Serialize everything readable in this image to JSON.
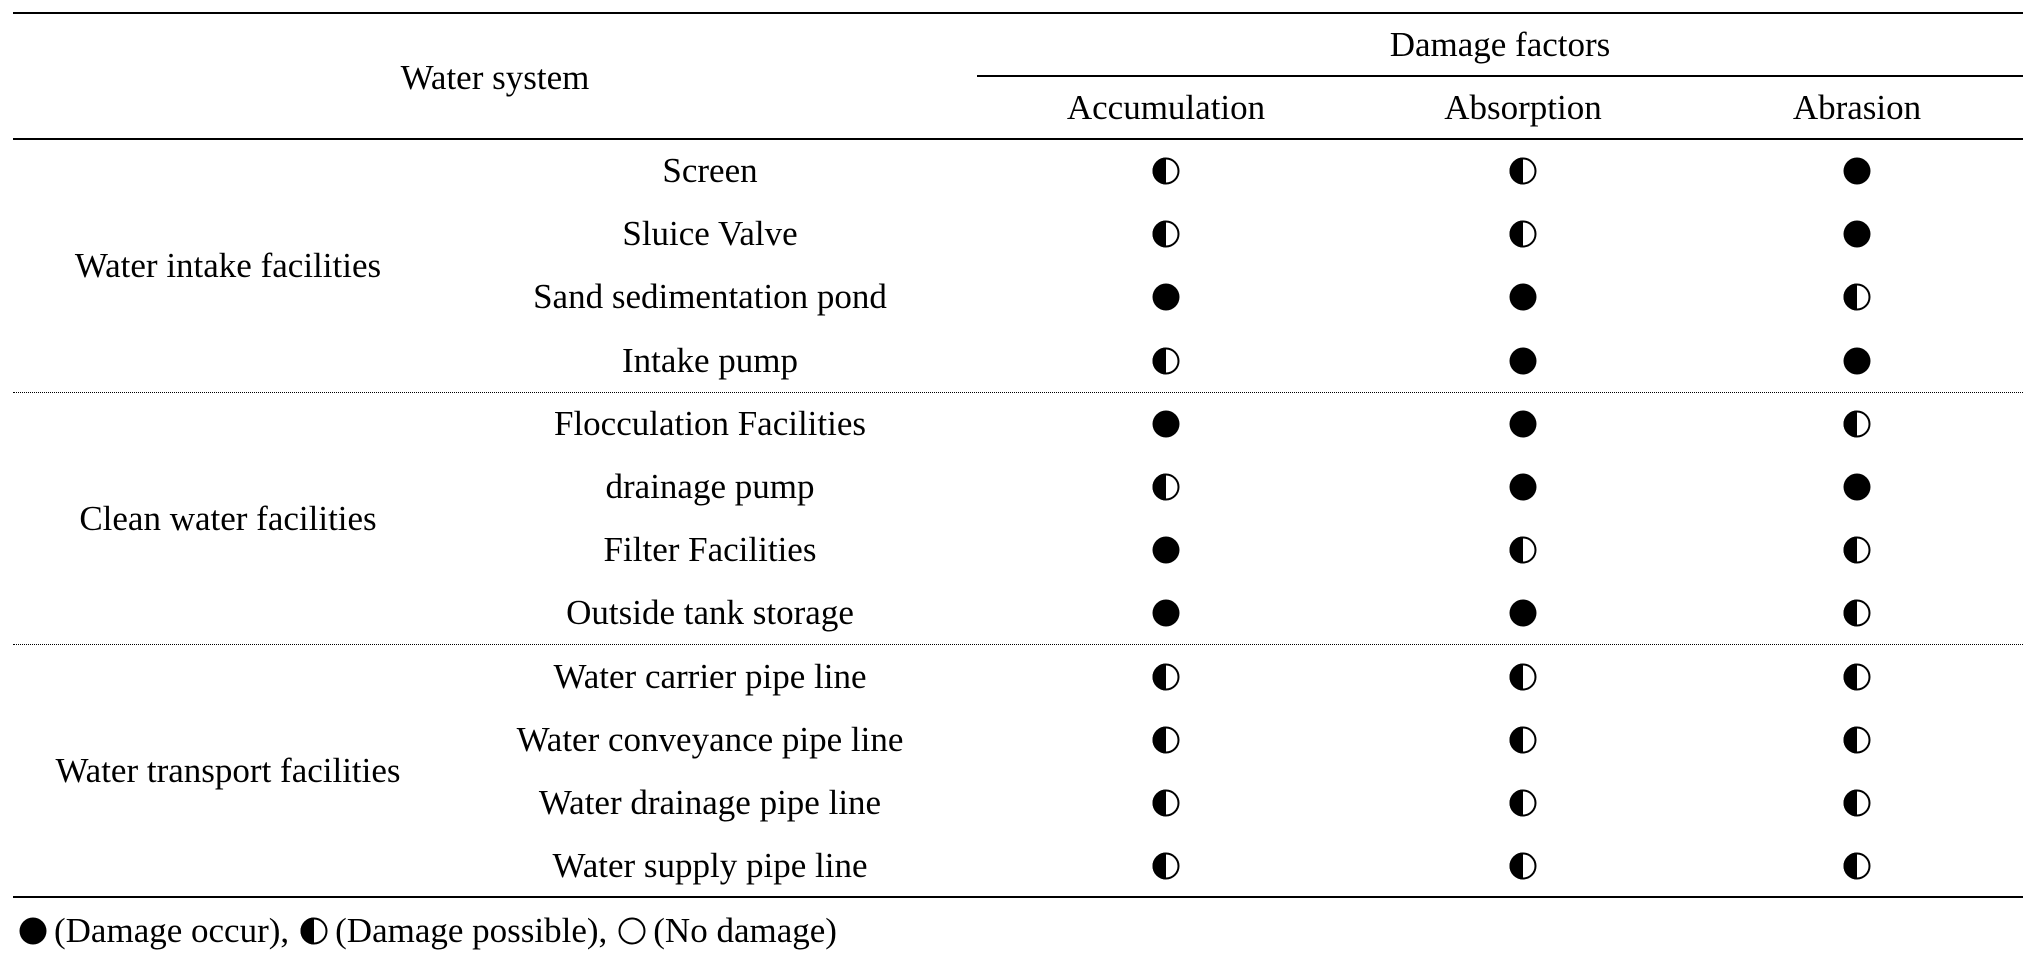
{
  "header": {
    "water_system": "Water system",
    "damage_factors": "Damage factors",
    "columns": [
      "Accumulation",
      "Absorption",
      "Abrasion"
    ]
  },
  "groups": [
    {
      "name": "Water intake facilities",
      "rows": [
        {
          "facility": "Screen",
          "values": [
            "possible",
            "possible",
            "occur"
          ]
        },
        {
          "facility": "Sluice Valve",
          "values": [
            "possible",
            "possible",
            "occur"
          ]
        },
        {
          "facility": "Sand sedimentation pond",
          "values": [
            "occur",
            "occur",
            "possible"
          ]
        },
        {
          "facility": "Intake pump",
          "values": [
            "possible",
            "occur",
            "occur"
          ]
        }
      ]
    },
    {
      "name": "Clean water facilities",
      "rows": [
        {
          "facility": "Flocculation Facilities",
          "values": [
            "occur",
            "occur",
            "possible"
          ]
        },
        {
          "facility": "drainage pump",
          "values": [
            "possible",
            "occur",
            "occur"
          ]
        },
        {
          "facility": "Filter Facilities",
          "values": [
            "occur",
            "possible",
            "possible"
          ]
        },
        {
          "facility": "Outside tank storage",
          "values": [
            "occur",
            "occur",
            "possible"
          ]
        }
      ]
    },
    {
      "name": "Water transport facilities",
      "rows": [
        {
          "facility": "Water carrier pipe line",
          "values": [
            "possible",
            "possible",
            "possible"
          ]
        },
        {
          "facility": "Water conveyance pipe line",
          "values": [
            "possible",
            "possible",
            "possible"
          ]
        },
        {
          "facility": "Water drainage pipe line",
          "values": [
            "possible",
            "possible",
            "possible"
          ]
        },
        {
          "facility": "Water supply pipe line",
          "values": [
            "possible",
            "possible",
            "possible"
          ]
        }
      ]
    }
  ],
  "legend": [
    {
      "symbol": "occur",
      "text": "(Damage occur),"
    },
    {
      "symbol": "possible",
      "text": "(Damage possible),"
    },
    {
      "symbol": "none",
      "text": "(No damage)"
    }
  ]
}
